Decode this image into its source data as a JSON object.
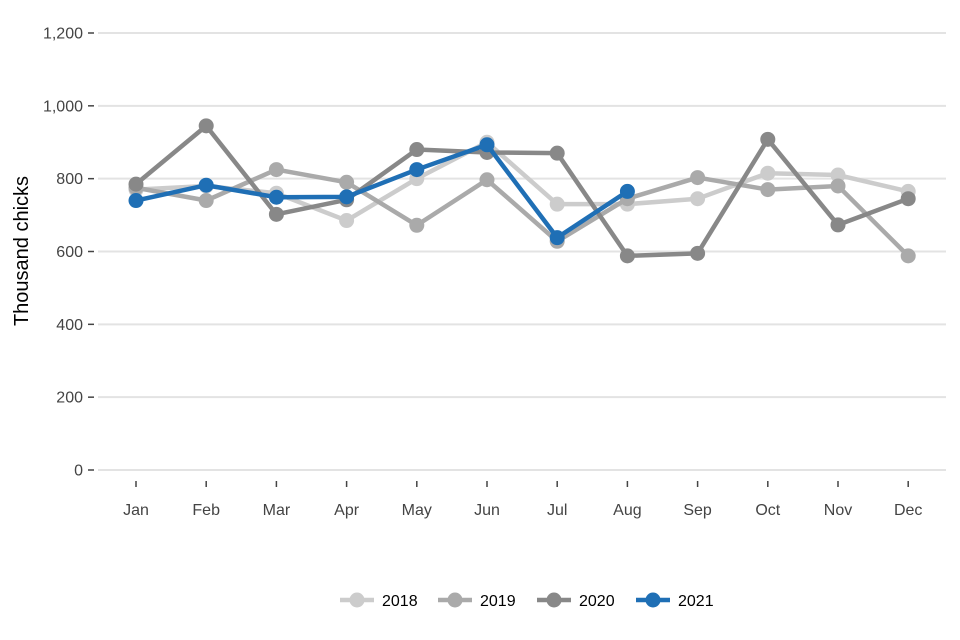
{
  "chart_data": {
    "type": "line",
    "title": "",
    "xlabel": "",
    "ylabel": "Thousand chicks",
    "ylim": [
      0,
      1200
    ],
    "yticks": [
      "0",
      "200",
      "400",
      "600",
      "800",
      "1,000",
      "1,200"
    ],
    "ytick_values": [
      0,
      200,
      400,
      600,
      800,
      1000,
      1200
    ],
    "categories": [
      "Jan",
      "Feb",
      "Mar",
      "Apr",
      "May",
      "Jun",
      "Jul",
      "Aug",
      "Sep",
      "Oct",
      "Nov",
      "Dec"
    ],
    "grid": true,
    "legend_position": "bottom",
    "series": [
      {
        "name": "2018",
        "color": "#cccccc",
        "values": [
          770,
          780,
          760,
          685,
          800,
          900,
          730,
          730,
          745,
          815,
          810,
          765
        ]
      },
      {
        "name": "2019",
        "color": "#aaaaaa",
        "values": [
          775,
          740,
          825,
          790,
          672,
          797,
          628,
          745,
          803,
          770,
          780,
          588
        ]
      },
      {
        "name": "2020",
        "color": "#888888",
        "values": [
          785,
          945,
          702,
          742,
          880,
          872,
          870,
          588,
          595,
          908,
          673,
          745
        ]
      },
      {
        "name": "2021",
        "color": "#1f6fb5",
        "values": [
          740,
          782,
          749,
          750,
          825,
          893,
          638,
          765,
          null,
          null,
          null,
          null
        ]
      }
    ]
  }
}
